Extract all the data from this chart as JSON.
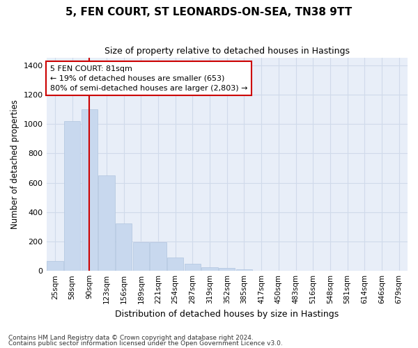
{
  "title": "5, FEN COURT, ST LEONARDS-ON-SEA, TN38 9TT",
  "subtitle": "Size of property relative to detached houses in Hastings",
  "xlabel": "Distribution of detached houses by size in Hastings",
  "ylabel": "Number of detached properties",
  "footnote1": "Contains HM Land Registry data © Crown copyright and database right 2024.",
  "footnote2": "Contains public sector information licensed under the Open Government Licence v3.0.",
  "categories": [
    "25sqm",
    "58sqm",
    "90sqm",
    "123sqm",
    "156sqm",
    "189sqm",
    "221sqm",
    "254sqm",
    "287sqm",
    "319sqm",
    "352sqm",
    "385sqm",
    "417sqm",
    "450sqm",
    "483sqm",
    "516sqm",
    "548sqm",
    "581sqm",
    "614sqm",
    "646sqm",
    "679sqm"
  ],
  "values": [
    65,
    1020,
    1100,
    650,
    325,
    195,
    195,
    90,
    50,
    25,
    20,
    10,
    0,
    0,
    0,
    0,
    0,
    0,
    0,
    0,
    0
  ],
  "bar_color": "#c8d8ee",
  "bar_edge_color": "#b0c4de",
  "grid_color": "#d0daea",
  "background_color": "#e8eef8",
  "vline_x": 1.97,
  "vline_color": "#cc0000",
  "annotation_line1": "5 FEN COURT: 81sqm",
  "annotation_line2": "← 19% of detached houses are smaller (653)",
  "annotation_line3": "80% of semi-detached houses are larger (2,803) →",
  "annotation_box_color": "#cc0000",
  "ylim": [
    0,
    1450
  ],
  "yticks": [
    0,
    200,
    400,
    600,
    800,
    1000,
    1200,
    1400
  ],
  "title_fontsize": 11,
  "subtitle_fontsize": 9
}
